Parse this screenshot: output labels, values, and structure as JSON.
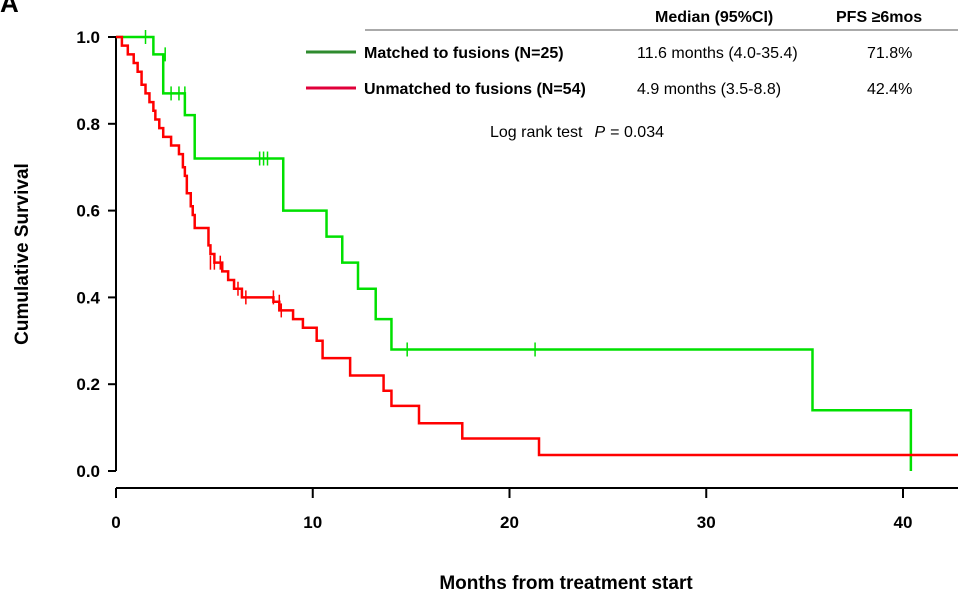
{
  "panel_label": "A",
  "colors": {
    "matched_line": "#00e000",
    "matched_legend": "#2e8b2e",
    "unmatched_line": "#ff0000",
    "unmatched_legend": "#e0003a",
    "axis": "#000000"
  },
  "legend": {
    "header_median": "Median (95%CI)",
    "header_pfs": "PFS ≥6mos",
    "rows": [
      {
        "label": "Matched to fusions (N=25)",
        "median": "11.6 months (4.0-35.4)",
        "pfs": "71.8%"
      },
      {
        "label": "Unmatched to fusions (N=54)",
        "median": "4.9 months (3.5-8.8)",
        "pfs": "42.4%"
      }
    ],
    "logrank_prefix": "Log rank test",
    "logrank_p_symbol": "P",
    "logrank_value": "= 0.034"
  },
  "chart_data": {
    "type": "line",
    "title": "",
    "xlabel": "Months from treatment start",
    "ylabel": "Cumulative Survival",
    "xlim": [
      0,
      43
    ],
    "ylim": [
      0,
      1
    ],
    "x_ticks": [
      0,
      10,
      20,
      30,
      40
    ],
    "x_tick_labels": [
      "0",
      "10",
      "20",
      "30",
      "40"
    ],
    "y_ticks": [
      0,
      0.2,
      0.4,
      0.6,
      0.8,
      1.0
    ],
    "y_tick_labels": [
      "0.0",
      "0.2",
      "0.4",
      "0.6",
      "0.8",
      "1.0"
    ],
    "grid": false,
    "series": [
      {
        "name": "Matched to fusions (N=25)",
        "steps": [
          [
            0,
            1.0
          ],
          [
            1.9,
            0.96
          ],
          [
            2.4,
            0.87
          ],
          [
            3.5,
            0.82
          ],
          [
            4.0,
            0.72
          ],
          [
            8.5,
            0.6
          ],
          [
            10.7,
            0.54
          ],
          [
            11.5,
            0.48
          ],
          [
            12.3,
            0.42
          ],
          [
            13.2,
            0.35
          ],
          [
            14.0,
            0.28
          ],
          [
            35.4,
            0.14
          ],
          [
            40.4,
            0.0
          ]
        ],
        "end_x": 40.4,
        "censored": [
          [
            1.5,
            1.0
          ],
          [
            2.5,
            0.96
          ],
          [
            2.8,
            0.87
          ],
          [
            3.2,
            0.87
          ],
          [
            3.5,
            0.87
          ],
          [
            7.3,
            0.72
          ],
          [
            7.5,
            0.72
          ],
          [
            7.7,
            0.72
          ],
          [
            14.8,
            0.28
          ],
          [
            21.3,
            0.28
          ]
        ]
      },
      {
        "name": "Unmatched to fusions (N=54)",
        "steps": [
          [
            0,
            1.0
          ],
          [
            0.3,
            0.98
          ],
          [
            0.6,
            0.96
          ],
          [
            0.9,
            0.94
          ],
          [
            1.1,
            0.92
          ],
          [
            1.3,
            0.89
          ],
          [
            1.5,
            0.87
          ],
          [
            1.7,
            0.85
          ],
          [
            1.9,
            0.83
          ],
          [
            2.0,
            0.81
          ],
          [
            2.2,
            0.79
          ],
          [
            2.4,
            0.77
          ],
          [
            2.8,
            0.75
          ],
          [
            3.2,
            0.73
          ],
          [
            3.4,
            0.7
          ],
          [
            3.5,
            0.68
          ],
          [
            3.6,
            0.64
          ],
          [
            3.8,
            0.61
          ],
          [
            3.9,
            0.59
          ],
          [
            4.0,
            0.56
          ],
          [
            4.7,
            0.52
          ],
          [
            4.8,
            0.5
          ],
          [
            5.0,
            0.48
          ],
          [
            5.4,
            0.46
          ],
          [
            5.7,
            0.44
          ],
          [
            6.0,
            0.42
          ],
          [
            6.4,
            0.4
          ],
          [
            8.0,
            0.39
          ],
          [
            8.3,
            0.37
          ],
          [
            9.0,
            0.35
          ],
          [
            9.5,
            0.33
          ],
          [
            10.2,
            0.3
          ],
          [
            10.5,
            0.26
          ],
          [
            11.9,
            0.22
          ],
          [
            13.6,
            0.185
          ],
          [
            14.0,
            0.15
          ],
          [
            15.4,
            0.11
          ],
          [
            17.6,
            0.075
          ],
          [
            21.5,
            0.037
          ]
        ],
        "end_x": 43,
        "censored": [
          [
            4.8,
            0.48
          ],
          [
            5.0,
            0.48
          ],
          [
            5.3,
            0.48
          ],
          [
            6.2,
            0.42
          ],
          [
            6.6,
            0.4
          ],
          [
            8.0,
            0.4
          ],
          [
            8.3,
            0.39
          ],
          [
            8.4,
            0.37
          ]
        ]
      }
    ]
  }
}
